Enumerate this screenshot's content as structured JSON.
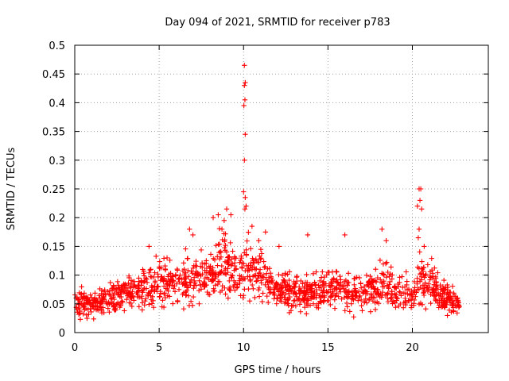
{
  "chart_data": {
    "type": "scatter",
    "title": "Day 094 of 2021, SRMTID for receiver p783",
    "xlabel": "GPS time / hours",
    "ylabel": "SRMTID / TECUs",
    "xlim": [
      0,
      24.5
    ],
    "ylim": [
      0,
      0.5
    ],
    "xticks": [
      0,
      5,
      10,
      15,
      20
    ],
    "xtick_labels": [
      "0",
      "5",
      "10",
      "15",
      "20"
    ],
    "yticks": [
      0,
      0.05,
      0.1,
      0.15,
      0.2,
      0.25,
      0.3,
      0.35,
      0.4,
      0.45,
      0.5
    ],
    "ytick_labels": [
      "0",
      "0.05",
      "0.1",
      "0.15",
      "0.2",
      "0.25",
      "0.3",
      "0.35",
      "0.4",
      "0.45",
      "0.5"
    ],
    "grid": true,
    "marker": "+",
    "series": [
      {
        "name": "SRMTID",
        "color": "#ff0000",
        "baseline": [
          [
            0,
            0.05
          ],
          [
            1,
            0.05
          ],
          [
            2,
            0.058
          ],
          [
            3,
            0.068
          ],
          [
            4,
            0.075
          ],
          [
            5,
            0.085
          ],
          [
            6,
            0.09
          ],
          [
            7,
            0.092
          ],
          [
            8,
            0.095
          ],
          [
            8.8,
            0.13
          ],
          [
            9.5,
            0.1
          ],
          [
            10.1,
            0.12
          ],
          [
            10.8,
            0.1
          ],
          [
            11.5,
            0.085
          ],
          [
            12.5,
            0.07
          ],
          [
            13.5,
            0.068
          ],
          [
            14.5,
            0.07
          ],
          [
            15.5,
            0.075
          ],
          [
            16.5,
            0.065
          ],
          [
            17.5,
            0.07
          ],
          [
            18.3,
            0.09
          ],
          [
            19,
            0.07
          ],
          [
            20,
            0.065
          ],
          [
            20.5,
            0.1
          ],
          [
            21.2,
            0.08
          ],
          [
            22,
            0.06
          ],
          [
            22.8,
            0.05
          ]
        ],
        "peaks": [
          [
            10.05,
            0.465
          ],
          [
            10.1,
            0.435
          ],
          [
            10.05,
            0.43
          ],
          [
            10.08,
            0.405
          ],
          [
            10.02,
            0.395
          ],
          [
            10.1,
            0.345
          ],
          [
            10.05,
            0.3
          ],
          [
            10.0,
            0.245
          ],
          [
            10.1,
            0.235
          ],
          [
            10.15,
            0.22
          ],
          [
            10.08,
            0.215
          ],
          [
            9.0,
            0.215
          ],
          [
            9.25,
            0.205
          ],
          [
            8.5,
            0.205
          ],
          [
            8.85,
            0.195
          ],
          [
            8.2,
            0.2
          ],
          [
            20.4,
            0.25
          ],
          [
            20.5,
            0.25
          ],
          [
            20.45,
            0.23
          ],
          [
            20.3,
            0.22
          ],
          [
            20.55,
            0.215
          ],
          [
            20.4,
            0.18
          ],
          [
            20.35,
            0.165
          ],
          [
            18.2,
            0.18
          ],
          [
            18.45,
            0.16
          ],
          [
            13.8,
            0.17
          ],
          [
            16.0,
            0.17
          ],
          [
            6.8,
            0.18
          ],
          [
            7.0,
            0.17
          ],
          [
            11.3,
            0.175
          ],
          [
            4.4,
            0.15
          ],
          [
            10.5,
            0.185
          ],
          [
            10.9,
            0.16
          ],
          [
            12.1,
            0.15
          ],
          [
            20.7,
            0.15
          ]
        ],
        "x_range": [
          0,
          22.8
        ],
        "count": 1400
      }
    ]
  }
}
